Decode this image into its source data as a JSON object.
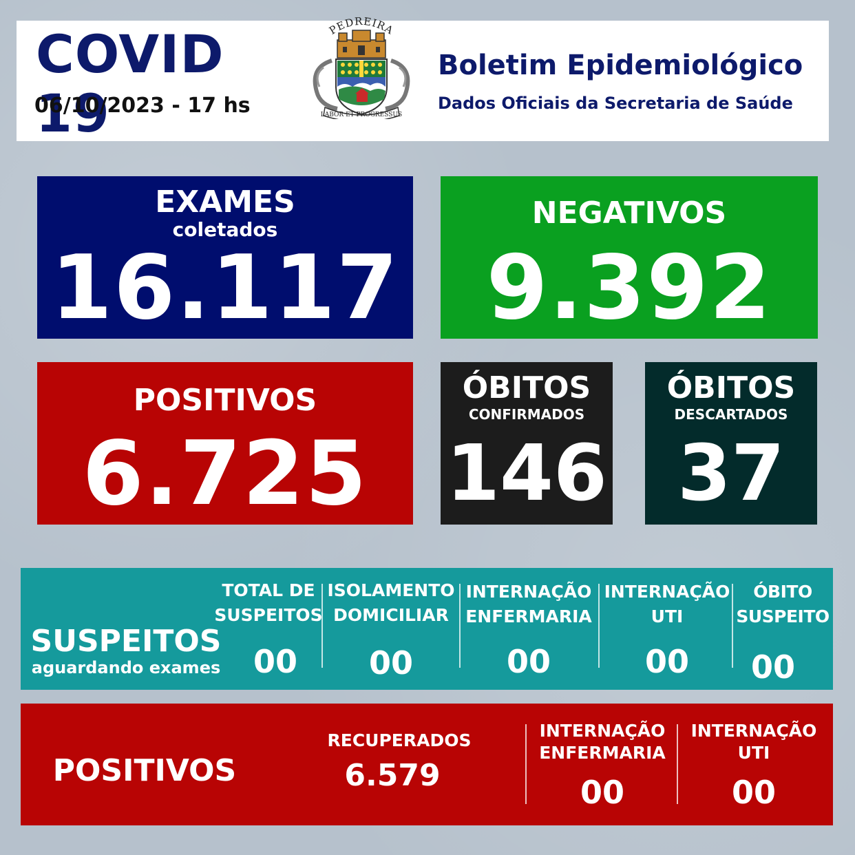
{
  "header": {
    "title": "COVID 19",
    "date": "06/10/2023 - 17 hs",
    "crest_top_text": "PEDREIRA",
    "crest_motto": "LABOR ET PROGRESSUS",
    "bulletin_title": "Boletim Epidemiológico",
    "bulletin_subtitle": "Dados Oficiais da Secretaria de Saúde"
  },
  "exames": {
    "label": "EXAMES",
    "sublabel": "coletados",
    "value": "16.117",
    "color": "#000d6e"
  },
  "negativos": {
    "label": "NEGATIVOS",
    "value": "9.392",
    "color": "#0aa020"
  },
  "positivos_box": {
    "label": "POSITIVOS",
    "value": "6.725",
    "color": "#b80404"
  },
  "obitos_confirmados": {
    "label": "ÓBITOS",
    "sublabel": "CONFIRMADOS",
    "value": "146",
    "color": "#1c1c1c"
  },
  "obitos_descartados": {
    "label": "ÓBITOS",
    "sublabel": "DESCARTADOS",
    "value": "37",
    "color": "#032b2b"
  },
  "suspeitos": {
    "title": "SUSPEITOS",
    "subtitle": "aguardando exames",
    "color": "#159a9c",
    "columns": [
      {
        "label_1": "TOTAL DE",
        "label_2": "SUSPEITOS",
        "value": "00"
      },
      {
        "label_1": "ISOLAMENTO",
        "label_2": "DOMICILIAR",
        "value": "00"
      },
      {
        "label_1": "INTERNAÇÃO",
        "label_2": "ENFERMARIA",
        "value": "00"
      },
      {
        "label_1": "INTERNAÇÃO",
        "label_2": "UTI",
        "value": "00"
      },
      {
        "label_1": "ÓBITO",
        "label_2": "SUSPEITO",
        "value": "00"
      }
    ]
  },
  "positivos": {
    "title": "POSITIVOS",
    "color": "#b80404",
    "recuperados": {
      "label": "RECUPERADOS",
      "value": "6.579"
    },
    "columns": [
      {
        "label_1": "INTERNAÇÃO",
        "label_2": "ENFERMARIA",
        "value": "00"
      },
      {
        "label_1": "INTERNAÇÃO",
        "label_2": "UTI",
        "value": "00"
      }
    ]
  }
}
